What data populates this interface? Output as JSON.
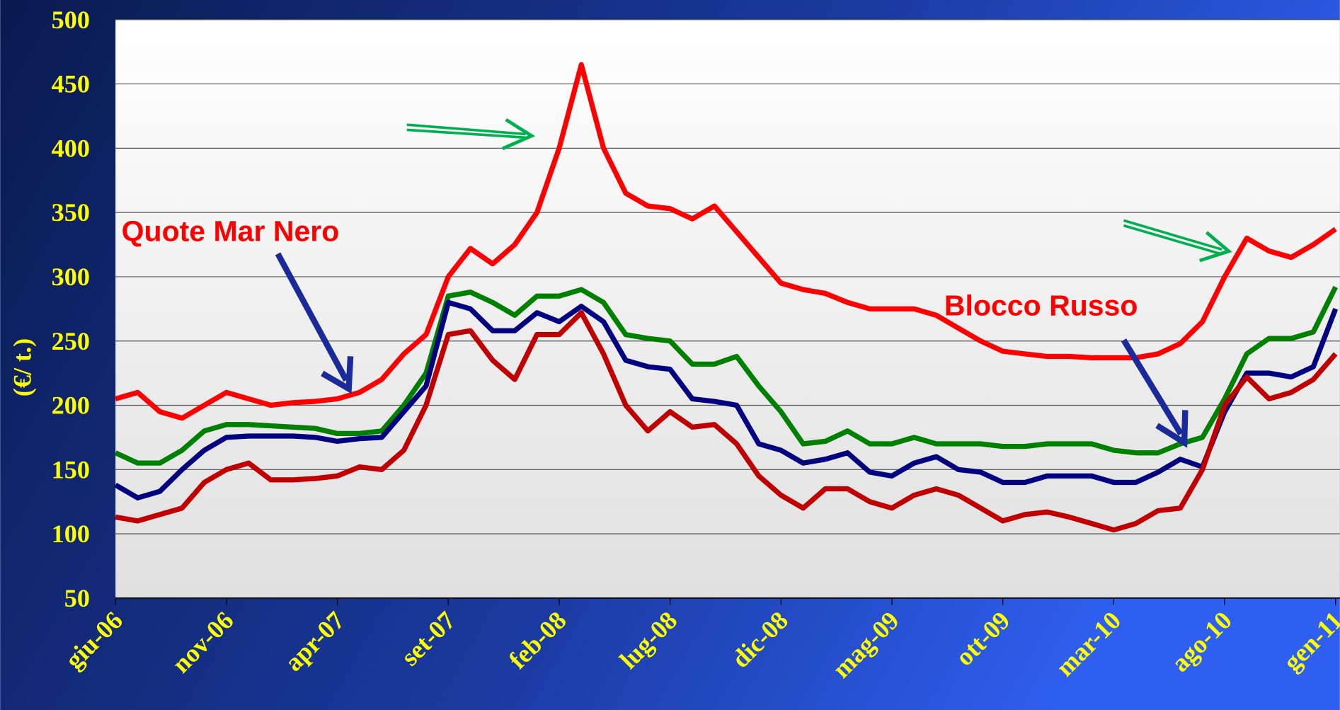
{
  "chart_data": {
    "type": "line",
    "y_label": "(€/ t.)",
    "annotations": [
      "Quote Mar Nero",
      "Blocco Russo"
    ],
    "categories": [
      "giu-06",
      null,
      null,
      null,
      null,
      "nov-06",
      null,
      null,
      null,
      null,
      "apr-07",
      null,
      null,
      null,
      null,
      "set-07",
      null,
      null,
      null,
      null,
      "feb-08",
      null,
      null,
      null,
      null,
      "lug-08",
      null,
      null,
      null,
      null,
      "dic-08",
      null,
      null,
      null,
      null,
      "mag-09",
      null,
      null,
      null,
      null,
      "ott-09",
      null,
      null,
      null,
      null,
      "mar-10",
      null,
      null,
      null,
      null,
      "ago-10",
      null,
      null,
      null,
      null,
      "gen-11"
    ],
    "ylim": [
      50,
      500
    ],
    "yticks": [
      50,
      100,
      150,
      200,
      250,
      300,
      350,
      400,
      450,
      500
    ],
    "grid": true,
    "series": [
      {
        "color": "#ff0000",
        "values": [
          205,
          210,
          195,
          190,
          200,
          210,
          205,
          200,
          202,
          203,
          205,
          210,
          220,
          240,
          255,
          300,
          322,
          310,
          325,
          350,
          400,
          465,
          400,
          365,
          355,
          353,
          345,
          355,
          335,
          315,
          295,
          290,
          287,
          280,
          275,
          275,
          275,
          270,
          260,
          250,
          242,
          240,
          238,
          238,
          237,
          237,
          237,
          240,
          248,
          265,
          300,
          330,
          320,
          315,
          325,
          337
        ]
      },
      {
        "color": "#008000",
        "values": [
          163,
          155,
          155,
          165,
          180,
          185,
          185,
          184,
          183,
          182,
          178,
          178,
          180,
          200,
          225,
          285,
          288,
          280,
          270,
          285,
          285,
          290,
          280,
          255,
          252,
          250,
          232,
          232,
          238,
          215,
          195,
          170,
          172,
          180,
          170,
          170,
          175,
          170,
          170,
          170,
          168,
          168,
          170,
          170,
          170,
          165,
          163,
          163,
          170,
          175,
          205,
          240,
          252,
          252,
          257,
          292
        ]
      },
      {
        "color": "#000080",
        "values": [
          138,
          128,
          133,
          150,
          165,
          175,
          176,
          176,
          176,
          175,
          172,
          174,
          175,
          195,
          215,
          280,
          275,
          258,
          258,
          272,
          265,
          277,
          265,
          235,
          230,
          228,
          205,
          203,
          200,
          170,
          165,
          155,
          158,
          163,
          148,
          145,
          155,
          160,
          150,
          148,
          140,
          140,
          145,
          145,
          145,
          140,
          140,
          148,
          158,
          152,
          195,
          225,
          225,
          222,
          230,
          275
        ]
      },
      {
        "color": "#c00000",
        "values": [
          113,
          110,
          115,
          120,
          140,
          150,
          155,
          142,
          142,
          143,
          145,
          152,
          150,
          165,
          200,
          255,
          258,
          235,
          220,
          255,
          255,
          272,
          240,
          200,
          180,
          195,
          183,
          185,
          170,
          145,
          130,
          120,
          135,
          135,
          125,
          120,
          130,
          135,
          130,
          120,
          110,
          115,
          117,
          113,
          108,
          103,
          108,
          118,
          120,
          150,
          200,
          222,
          205,
          210,
          220,
          240
        ]
      }
    ]
  }
}
